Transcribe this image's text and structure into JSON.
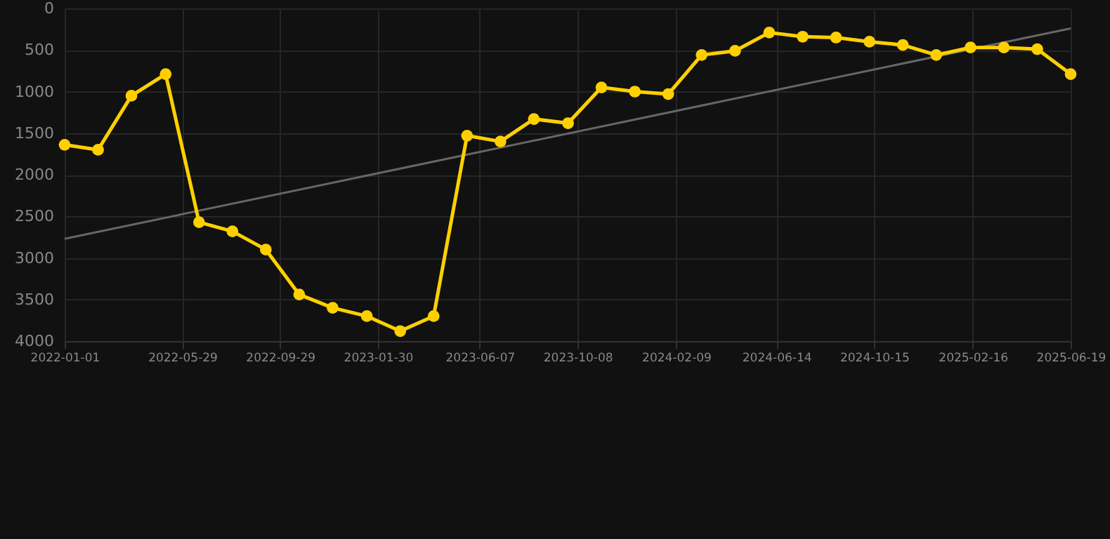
{
  "chart_data": {
    "type": "line",
    "xlim": [
      "2022-01-01",
      "2025-06-19"
    ],
    "xticks": [
      "2022-01-01",
      "2022-05-29",
      "2022-09-29",
      "2023-01-30",
      "2023-06-07",
      "2023-10-08",
      "2024-02-09",
      "2024-06-14",
      "2024-10-15",
      "2025-02-16",
      "2025-06-19"
    ],
    "ylim": [
      4000,
      0
    ],
    "yticks": [
      0,
      500,
      1000,
      1500,
      2000,
      2500,
      3000,
      3500,
      4000
    ],
    "grid": true,
    "series": [
      {
        "type": "line",
        "color": "#666666",
        "marker": "none",
        "x": [
          "2022-01-01",
          "2025-06-19"
        ],
        "values": [
          2770,
          240
        ]
      },
      {
        "color": "#ffd000",
        "marker": "circle",
        "x": [
          "2022-01-01",
          "2022-02-12",
          "2022-03-26",
          "2022-05-08",
          "2022-06-19",
          "2022-07-31",
          "2022-09-11",
          "2022-10-23",
          "2022-12-04",
          "2023-01-16",
          "2023-02-27",
          "2023-04-10",
          "2023-05-22",
          "2023-07-03",
          "2023-08-14",
          "2023-09-26",
          "2023-11-07",
          "2023-12-19",
          "2024-01-30",
          "2024-03-12",
          "2024-04-23",
          "2024-06-05",
          "2024-07-17",
          "2024-08-28",
          "2024-10-09",
          "2024-11-20",
          "2025-01-01",
          "2025-02-13",
          "2025-03-27",
          "2025-05-08",
          "2025-06-19"
        ],
        "values": [
          1640,
          1700,
          1050,
          790,
          2570,
          2680,
          2900,
          3440,
          3600,
          3700,
          3880,
          3700,
          1530,
          1600,
          1330,
          1380,
          950,
          1000,
          1030,
          560,
          510,
          290,
          340,
          350,
          400,
          440,
          560,
          470,
          470,
          490,
          790
        ]
      }
    ]
  }
}
